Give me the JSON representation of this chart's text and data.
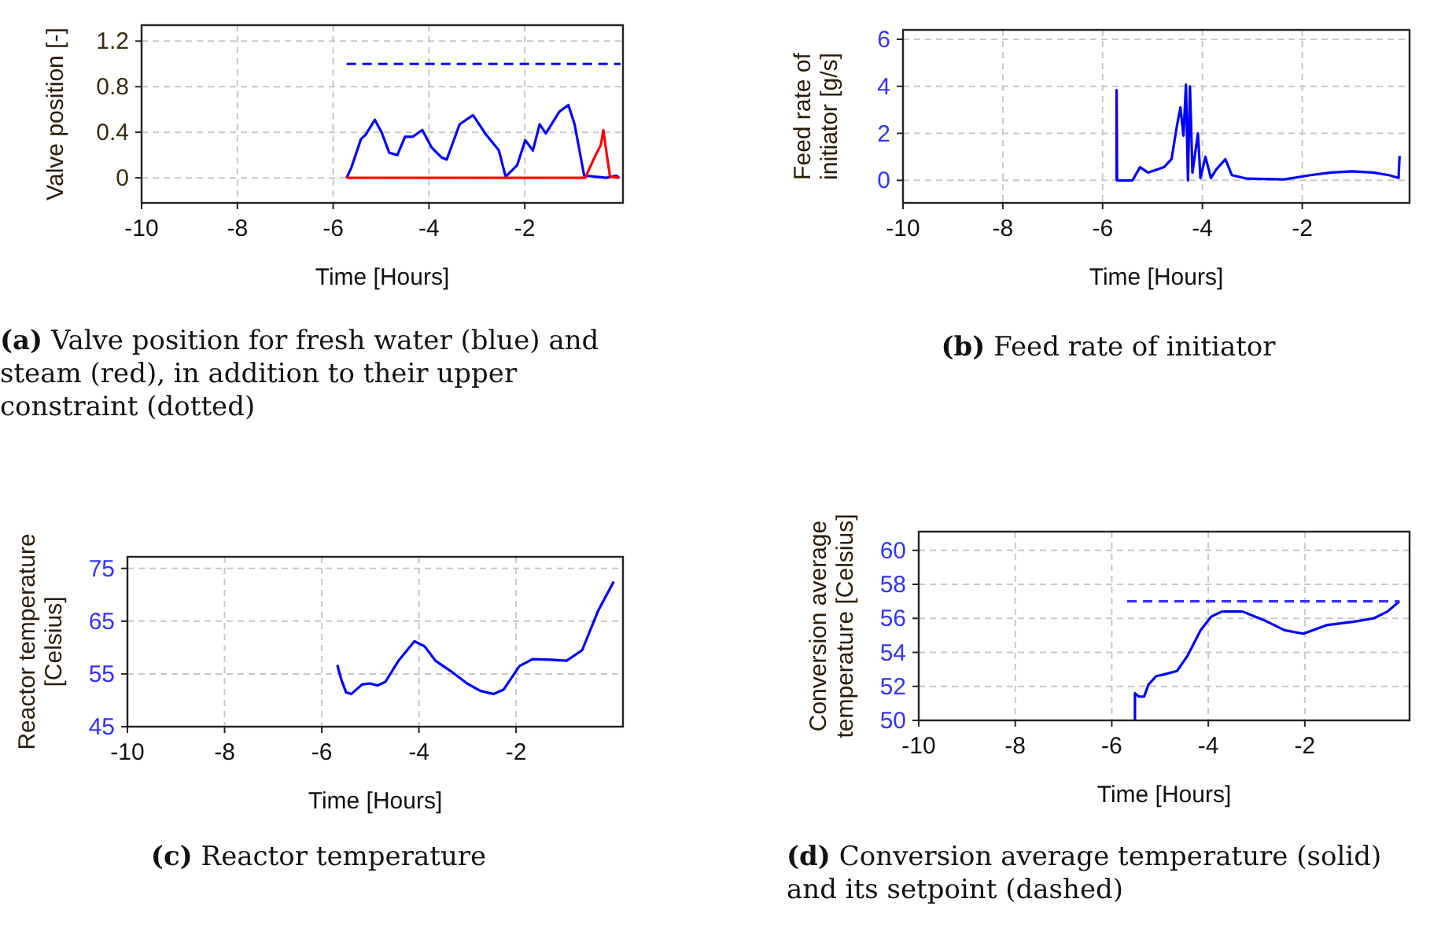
{
  "chart_data": [
    {
      "type": "line",
      "xlabel": "Time [Hours]",
      "ylabel": "Valve position [-]",
      "xlim": [
        -10,
        0.05
      ],
      "ylim": [
        -0.22,
        1.34
      ],
      "xticks": [
        -10,
        -8,
        -6,
        -4,
        -2
      ],
      "yticks": [
        0,
        0.4,
        0.8,
        1.2
      ],
      "grid": true,
      "marker": "none",
      "annotations": [
        "(a) Valve position for fresh water (blue) and steam (red), in addition to their upper constraint (dotted)"
      ],
      "series": [
        {
          "color": "#0000ff",
          "x": [
            -5.72,
            -5.62,
            -5.42,
            -5.32,
            -5.13,
            -4.99,
            -4.83,
            -4.66,
            -4.5,
            -4.34,
            -4.14,
            -3.95,
            -3.74,
            -3.63,
            -3.36,
            -3.08,
            -2.81,
            -2.54,
            -2.4,
            -2.16,
            -1.99,
            -1.83,
            -1.69,
            -1.56,
            -1.28,
            -1.09,
            -0.96,
            -0.76,
            -0.3,
            -0.09,
            -0.03
          ],
          "values": [
            0,
            0.09,
            0.34,
            0.38,
            0.51,
            0.4,
            0.22,
            0.2,
            0.36,
            0.36,
            0.42,
            0.27,
            0.18,
            0.16,
            0.47,
            0.55,
            0.38,
            0.24,
            0.01,
            0.11,
            0.33,
            0.24,
            0.47,
            0.39,
            0.58,
            0.64,
            0.47,
            0.02,
            0,
            0.02,
            0
          ]
        },
        {
          "color": "#ff0000",
          "x": [
            -5.72,
            -0.74,
            -0.52,
            -0.41,
            -0.36,
            -0.3,
            -0.22,
            -0.03
          ],
          "values": [
            0,
            0,
            0.2,
            0.29,
            0.42,
            0.24,
            0.01,
            0
          ]
        },
        {
          "color": "#0000ff",
          "line_style": "dashed",
          "x": [
            -5.72,
            0
          ],
          "values": [
            1,
            1
          ]
        }
      ]
    },
    {
      "type": "line",
      "xlabel": "Time [Hours]",
      "ylabel": "Feed rate of initiator [g/s]",
      "xlim": [
        -10,
        0.15
      ],
      "ylim": [
        -0.96,
        6.4
      ],
      "xticks": [
        -10,
        -8,
        -6,
        -4,
        -2
      ],
      "yticks": [
        0,
        2,
        4,
        6
      ],
      "grid": true,
      "marker": "none",
      "annotations": [
        "(b) Feed rate of initiator"
      ],
      "series": [
        {
          "color": "#0000ff",
          "x": [
            -5.72,
            -5.72,
            -5.71,
            -5.4,
            -5.25,
            -5.09,
            -4.77,
            -4.62,
            -4.51,
            -4.44,
            -4.38,
            -4.33,
            -4.29,
            -4.25,
            -4.2,
            -4.09,
            -4.04,
            -3.94,
            -3.83,
            -3.73,
            -3.54,
            -3.41,
            -3.1,
            -2.36,
            -1.84,
            -1.42,
            -1.0,
            -0.58,
            -0.26,
            -0.07,
            -0.05
          ],
          "values": [
            0,
            3.84,
            0,
            0,
            0.56,
            0.33,
            0.56,
            0.9,
            2.33,
            3.1,
            1.9,
            4.07,
            0,
            4.0,
            0.33,
            2.0,
            0.1,
            1.0,
            0.1,
            0.44,
            0.9,
            0.22,
            0.07,
            0.04,
            0.22,
            0.33,
            0.38,
            0.33,
            0.22,
            0.1,
            1.04
          ]
        }
      ]
    },
    {
      "type": "line",
      "xlabel": "Time [Hours]",
      "ylabel": "Reactor temperature [Celsius]",
      "xlim": [
        -10,
        0.2
      ],
      "ylim": [
        45,
        77.2
      ],
      "xticks": [
        -10,
        -8,
        -6,
        -4,
        -2
      ],
      "yticks": [
        45,
        55,
        65,
        75
      ],
      "grid": true,
      "marker": "none",
      "annotations": [
        "(c) Reactor temperature"
      ],
      "series": [
        {
          "color": "#0000ff",
          "x": [
            -5.68,
            -5.6,
            -5.5,
            -5.39,
            -5.17,
            -5.01,
            -4.85,
            -4.69,
            -4.42,
            -4.09,
            -3.88,
            -3.66,
            -3.34,
            -3.01,
            -2.74,
            -2.47,
            -2.26,
            -1.93,
            -1.66,
            -1.28,
            -0.96,
            -0.64,
            -0.31,
            0.01
          ],
          "values": [
            56.7,
            54,
            51.5,
            51.2,
            53,
            53.2,
            52.8,
            53.5,
            57.5,
            61.2,
            60.2,
            57.5,
            55.5,
            53.2,
            51.8,
            51.2,
            52,
            56.5,
            57.8,
            57.7,
            57.5,
            59.5,
            67,
            72.5
          ]
        }
      ]
    },
    {
      "type": "line",
      "xlabel": "Time [Hours]",
      "ylabel": "Conversion average temperature [Celsius]",
      "xlim": [
        -10,
        0.17
      ],
      "ylim": [
        50,
        61.1
      ],
      "xticks": [
        -10,
        -8,
        -6,
        -4,
        -2
      ],
      "yticks": [
        50,
        52,
        54,
        56,
        58,
        60
      ],
      "grid": true,
      "marker": "none",
      "annotations": [
        "(d) Conversion average temperature (solid) and its setpoint (dashed)"
      ],
      "series": [
        {
          "color": "#0000ff",
          "x": [
            -5.52,
            -5.52,
            -5.44,
            -5.33,
            -5.24,
            -5.08,
            -4.92,
            -4.65,
            -4.43,
            -4.16,
            -3.94,
            -3.72,
            -3.29,
            -2.85,
            -2.42,
            -2.03,
            -1.55,
            -1.0,
            -0.57,
            -0.29,
            -0.04
          ],
          "values": [
            50,
            51.6,
            51.4,
            51.4,
            52.1,
            52.6,
            52.7,
            52.9,
            53.8,
            55.3,
            56.1,
            56.4,
            56.4,
            55.9,
            55.3,
            55.1,
            55.6,
            55.8,
            56.0,
            56.4,
            57.0
          ]
        },
        {
          "color": "#3333ff",
          "line_style": "dashed",
          "x": [
            -5.68,
            -0.04
          ],
          "values": [
            57,
            57
          ]
        }
      ]
    }
  ]
}
